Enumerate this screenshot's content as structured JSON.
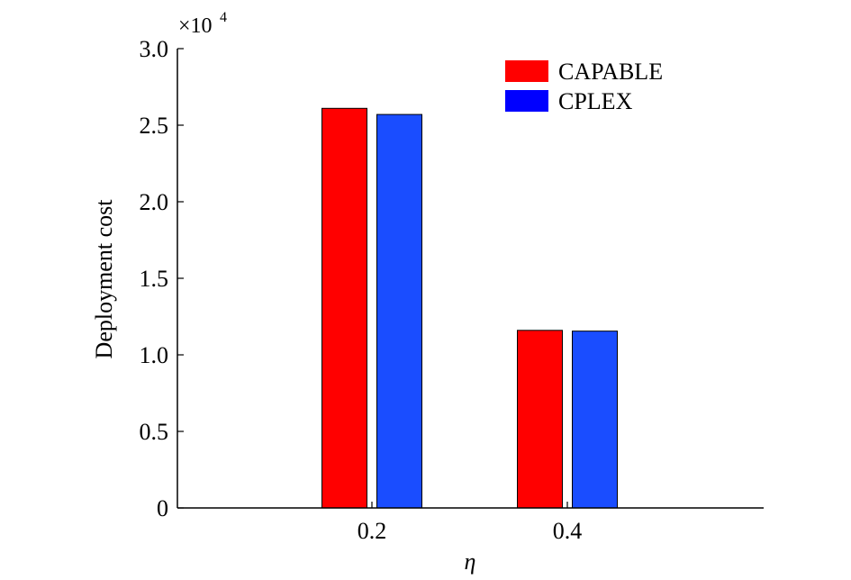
{
  "chart_data": {
    "type": "bar",
    "categories": [
      "0.2",
      "0.4"
    ],
    "series": [
      {
        "name": "CAPABLE",
        "values": [
          26100,
          11600
        ],
        "color": "#ff0000"
      },
      {
        "name": "CPLEX",
        "values": [
          25700,
          11550
        ],
        "color": "#1a4dff"
      }
    ],
    "legend_colors": {
      "CAPABLE": "#ff0000",
      "CPLEX": "#0000ff"
    },
    "xlabel": "η",
    "ylabel": "Deployment cost",
    "ylim": [
      0,
      30000
    ],
    "yticks": [
      0,
      5000,
      10000,
      15000,
      20000,
      25000,
      30000
    ],
    "ytick_labels": [
      "0",
      "0.5",
      "1.0",
      "1.5",
      "2.0",
      "2.5",
      "3.0"
    ],
    "scale_multiplier": {
      "base": "×10",
      "exponent": "4"
    },
    "legend_position": "top-right",
    "grid": false
  }
}
